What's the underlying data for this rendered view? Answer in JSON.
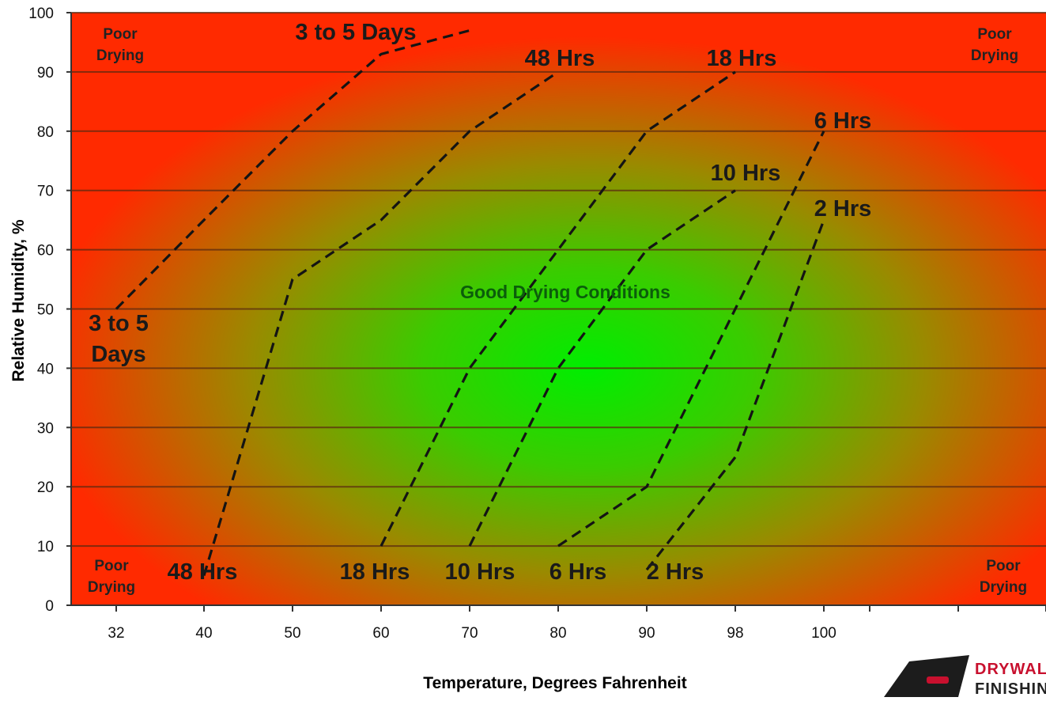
{
  "chart_data": {
    "type": "line",
    "xlabel": "Temperature, Degrees Fahrenheit",
    "ylabel": "Relative Humidity, %",
    "x_ticks": [
      "32",
      "40",
      "50",
      "60",
      "70",
      "80",
      "90",
      "98",
      "100"
    ],
    "y_ticks": [
      0,
      10,
      20,
      30,
      40,
      50,
      60,
      70,
      80,
      90,
      100
    ],
    "ylim": [
      0,
      100
    ],
    "grid": "horizontal",
    "background": {
      "gradient": "radial",
      "center_color": "#00ee00",
      "edge_color": "#ff2a00"
    },
    "series": [
      {
        "name": "3 to 5 Days",
        "points": [
          [
            32,
            50
          ],
          [
            40,
            65
          ],
          [
            50,
            80
          ],
          [
            60,
            93
          ],
          [
            70,
            97
          ]
        ],
        "label_end": "3 to 5 Days",
        "label_start_lines": [
          "3 to 5",
          "Days"
        ]
      },
      {
        "name": "48 Hrs",
        "points": [
          [
            40,
            5
          ],
          [
            45,
            30
          ],
          [
            50,
            55
          ],
          [
            60,
            65
          ],
          [
            70,
            80
          ],
          [
            80,
            90
          ]
        ],
        "label_start": "48 Hrs",
        "label_end": "48 Hrs"
      },
      {
        "name": "18 Hrs",
        "points": [
          [
            60,
            10
          ],
          [
            70,
            40
          ],
          [
            80,
            60
          ],
          [
            90,
            80
          ],
          [
            98,
            90
          ]
        ],
        "label_start": "18 Hrs",
        "label_end": "18 Hrs"
      },
      {
        "name": "10 Hrs",
        "points": [
          [
            70,
            10
          ],
          [
            80,
            40
          ],
          [
            90,
            60
          ],
          [
            98,
            70
          ]
        ],
        "label_start": "10 Hrs",
        "label_end": "10 Hrs"
      },
      {
        "name": "6 Hrs",
        "points": [
          [
            80,
            10
          ],
          [
            90,
            20
          ],
          [
            98,
            50
          ],
          [
            100,
            80
          ]
        ],
        "label_start": "6 Hrs",
        "label_end": "6 Hrs"
      },
      {
        "name": "2 Hrs",
        "points": [
          [
            90,
            6
          ],
          [
            98,
            25
          ],
          [
            100,
            65
          ]
        ],
        "label_start": "2 Hrs",
        "label_end": "2 Hrs"
      }
    ],
    "annotations": {
      "center": "Good Drying Conditions",
      "corner_top_left": [
        "Poor",
        "Drying"
      ],
      "corner_top_right": [
        "Poor",
        "Drying"
      ],
      "corner_bottom_left": [
        "Poor",
        "Drying"
      ],
      "corner_bottom_right": [
        "Poor",
        "Drying"
      ]
    }
  },
  "logo": {
    "line1": "DRYWALL",
    "line2": "FINISHING",
    "line1_color": "#c8102e",
    "line2_color": "#222222"
  }
}
